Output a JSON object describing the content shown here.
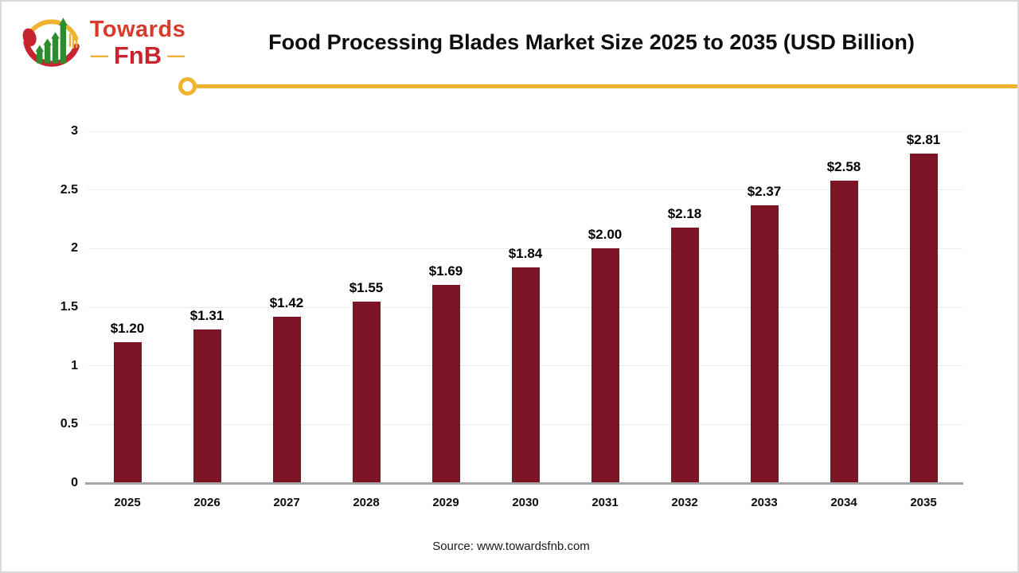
{
  "header": {
    "logo": {
      "line1": "Towards",
      "line2": "FnB",
      "dash": "—"
    },
    "title": "Food Processing Blades Market Size 2025 to 2035 (USD Billion)"
  },
  "chart_data": {
    "type": "bar",
    "title": "Food Processing Blades Market Size 2025 to 2035 (USD Billion)",
    "categories": [
      "2025",
      "2026",
      "2027",
      "2028",
      "2029",
      "2030",
      "2031",
      "2032",
      "2033",
      "2034",
      "2035"
    ],
    "values": [
      1.2,
      1.31,
      1.42,
      1.55,
      1.69,
      1.84,
      2.0,
      2.18,
      2.37,
      2.58,
      2.81
    ],
    "data_labels": [
      "$1.20",
      "$1.31",
      "$1.42",
      "$1.55",
      "$1.69",
      "$1.84",
      "$2.00",
      "$2.18",
      "$2.37",
      "$2.58",
      "$2.81"
    ],
    "xlabel": "",
    "ylabel": "",
    "ylim": [
      0,
      3
    ],
    "yticks": [
      0,
      0.5,
      1,
      1.5,
      2,
      2.5,
      3
    ],
    "ytick_labels": [
      "0",
      "0.5",
      "1",
      "1.5",
      "2",
      "2.5",
      "3"
    ],
    "grid": true,
    "legend": false,
    "bar_color": "#7E1526"
  },
  "footer": {
    "source": "Source: www.towardsfnb.com"
  },
  "colors": {
    "accent_yellow": "#F0B32F",
    "bar_maroon": "#7E1526",
    "logo_red": "#D93A2C",
    "logo_dark_red": "#C8242F",
    "logo_green": "#2E8B2E",
    "gridline": "#ececec",
    "axis_line": "#a6a6a6"
  }
}
